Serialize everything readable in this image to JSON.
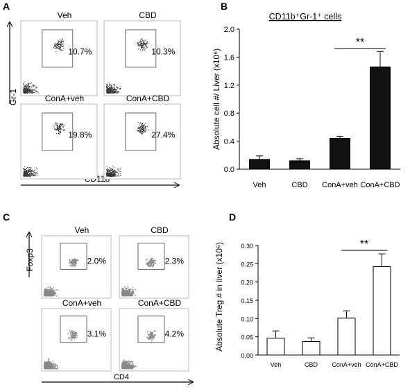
{
  "panel_letters": {
    "a": "A",
    "b": "B",
    "c": "C",
    "d": "D"
  },
  "panel_a": {
    "y_axis_label": "Gr-1",
    "x_axis_label": "CD11b",
    "plots": [
      {
        "title": "Veh",
        "percent": "10.7%"
      },
      {
        "title": "CBD",
        "percent": "10.3%"
      },
      {
        "title": "ConA+veh",
        "percent": "19.8%"
      },
      {
        "title": "ConA+CBD",
        "percent": "27.4%"
      }
    ]
  },
  "panel_c": {
    "y_axis_label": "Foxp3",
    "x_axis_label": "CD4",
    "plots": [
      {
        "title": "Veh",
        "percent": "2.0%"
      },
      {
        "title": "CBD",
        "percent": "2.3%"
      },
      {
        "title": "ConA+veh",
        "percent": "3.1%"
      },
      {
        "title": "ConA+CBD",
        "percent": "4.2%"
      }
    ]
  },
  "chart_data": [
    {
      "type": "bar",
      "title": "CD11b⁺Gr-1⁺ cells",
      "ylabel": "Absolute cell #/ Liver (x10⁶)",
      "xlabel": "",
      "categories": [
        "Veh",
        "CBD",
        "ConA+veh",
        "ConA+CBD"
      ],
      "values": [
        0.14,
        0.12,
        0.44,
        1.46
      ],
      "errors": [
        0.05,
        0.03,
        0.03,
        0.22
      ],
      "bar_color": "#111111",
      "ylim": [
        0,
        2.0
      ],
      "yticks": [
        "0.0",
        "0.4",
        "0.8",
        "1.2",
        "1.6",
        "2.0"
      ],
      "significance": {
        "label": "**",
        "from": "ConA+veh",
        "to": "ConA+CBD"
      }
    },
    {
      "type": "bar",
      "title": "",
      "ylabel": "Absolute Treg # in liver (x10⁶)",
      "xlabel": "",
      "categories": [
        "Veh",
        "CBD",
        "ConA+veh",
        "ConA+CBD"
      ],
      "values": [
        0.046,
        0.037,
        0.101,
        0.242
      ],
      "errors": [
        0.02,
        0.01,
        0.02,
        0.035
      ],
      "bar_color": "#ffffff",
      "ylim": [
        0,
        0.3
      ],
      "yticks": [
        "0.00",
        "0.05",
        "0.10",
        "0.15",
        "0.20",
        "0.25",
        "0.30"
      ],
      "significance": {
        "label": "**",
        "from": "ConA+veh",
        "to": "ConA+CBD"
      }
    }
  ]
}
